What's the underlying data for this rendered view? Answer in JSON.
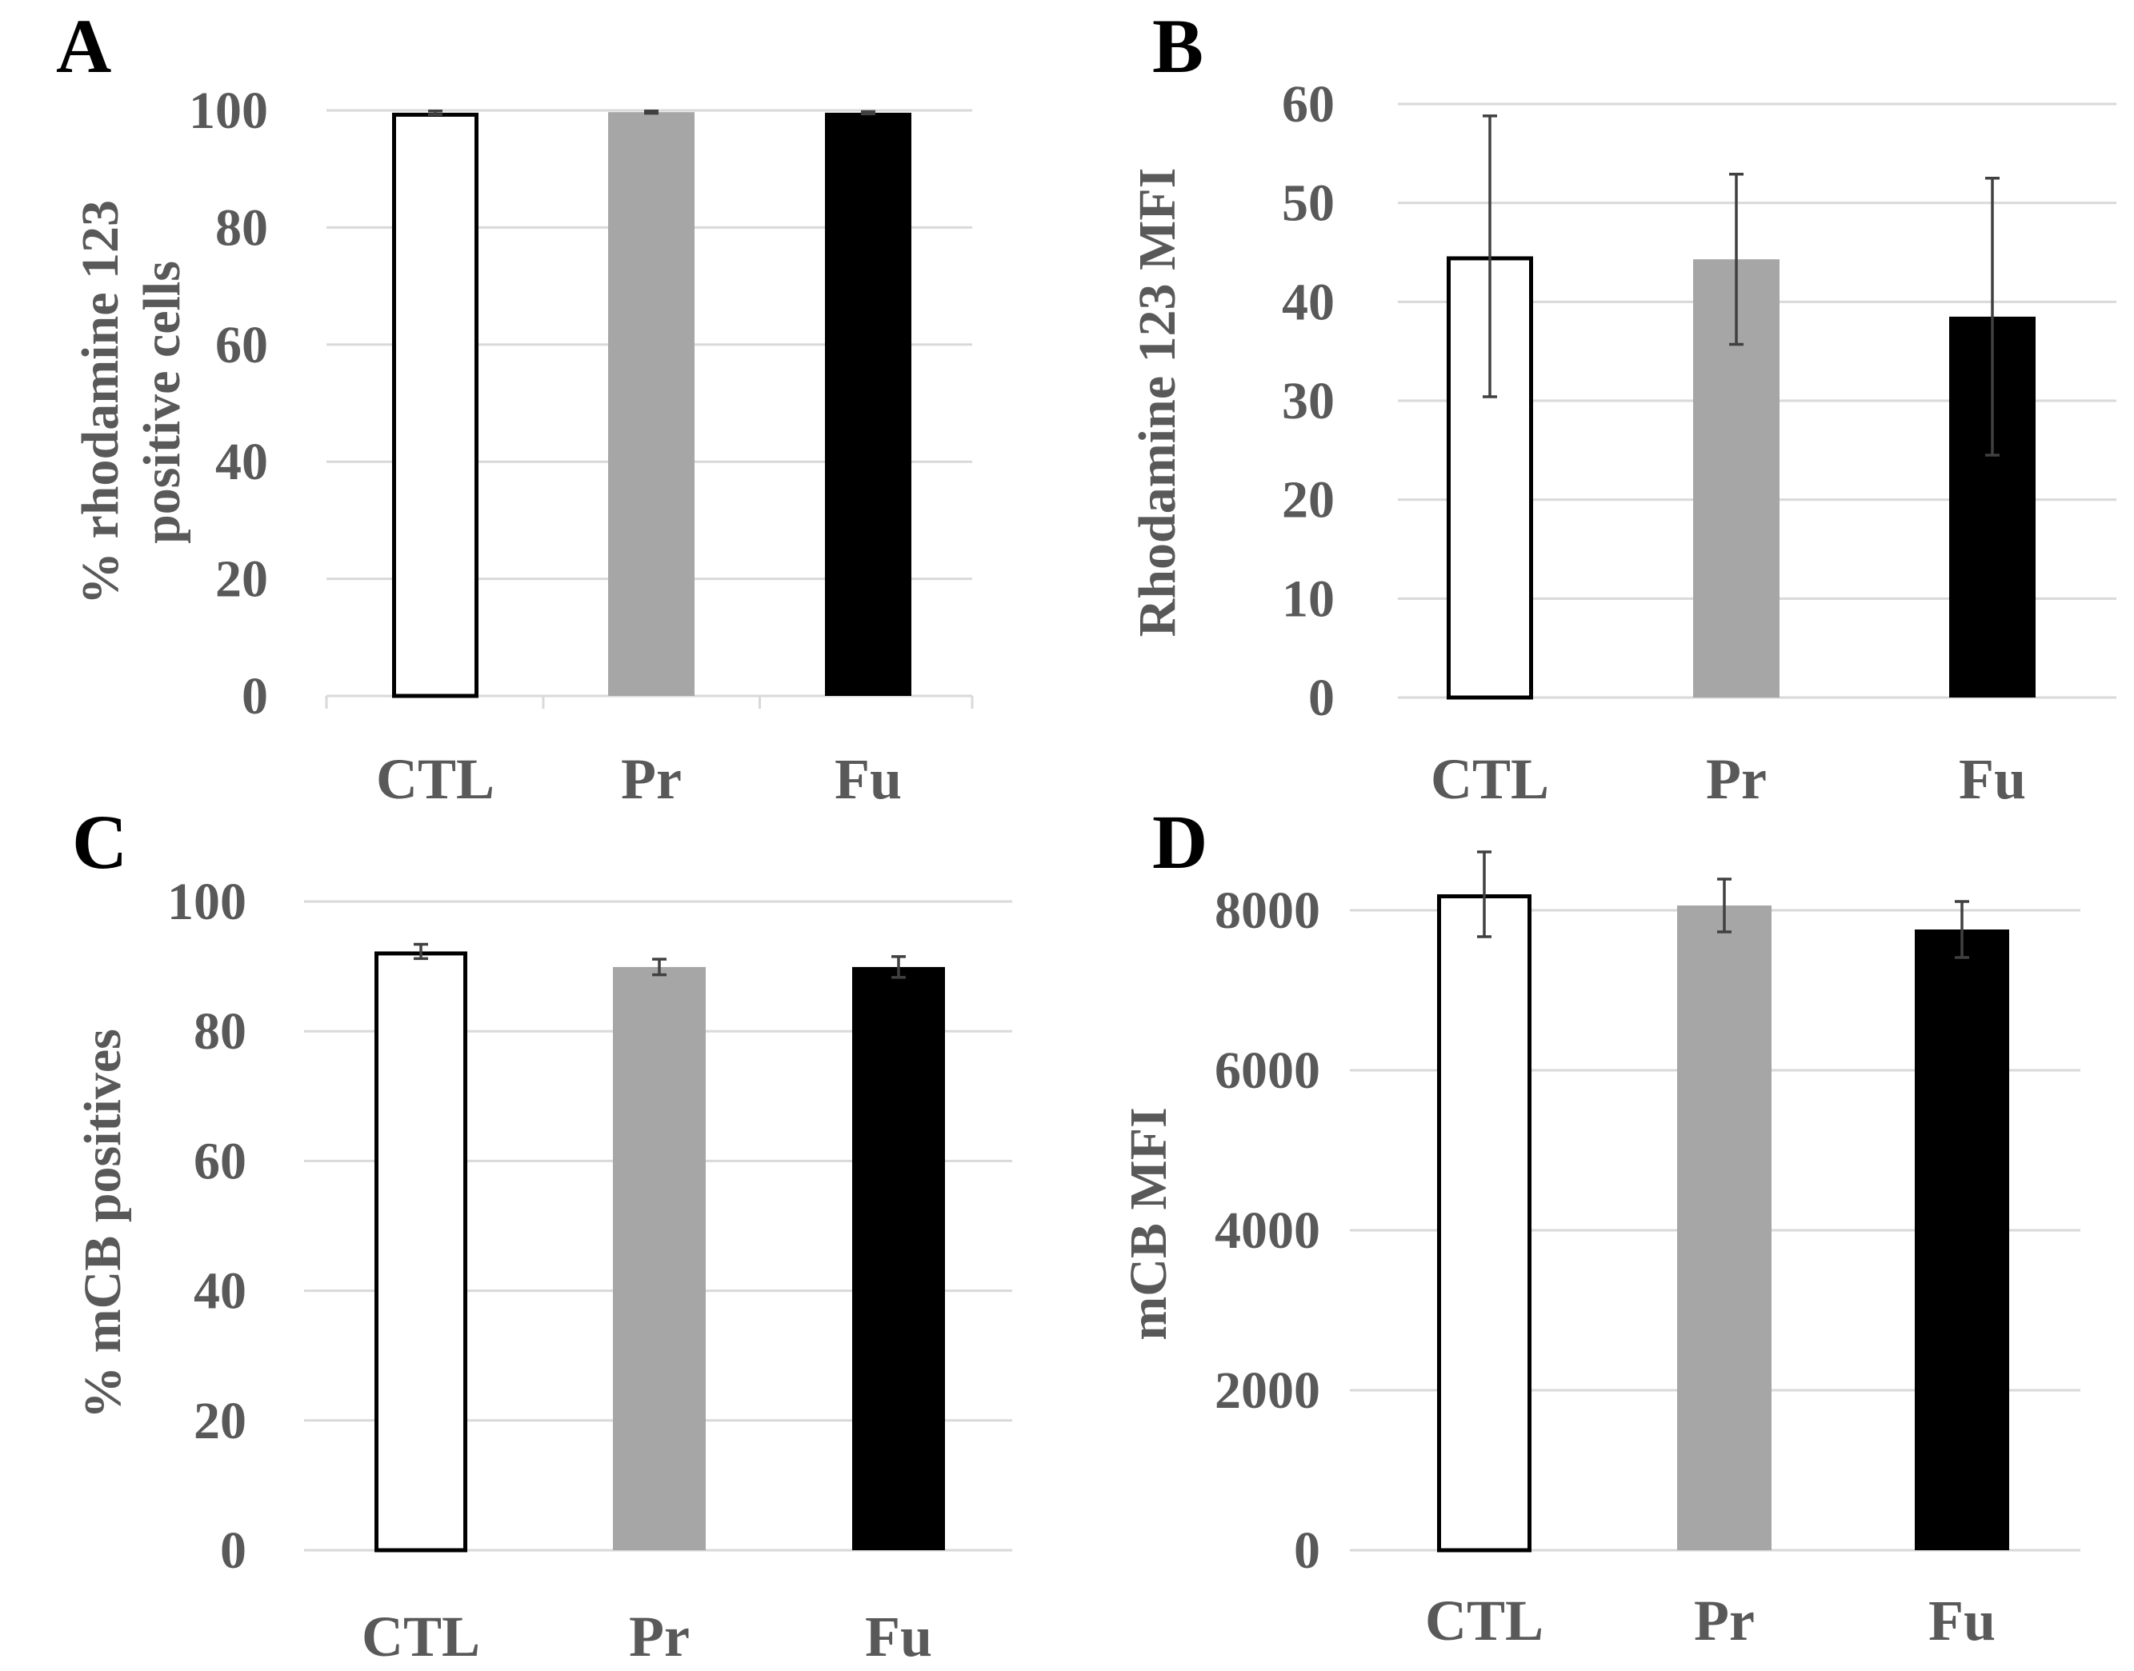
{
  "colors": {
    "ctl_fill": "#ffffff",
    "ctl_stroke": "#000000",
    "pr_fill": "#a6a6a6",
    "fu_fill": "#000000",
    "text": "#595959",
    "grid": "#d9d9d9",
    "error_bar": "#404040"
  },
  "chart_data": [
    {
      "panel": "A",
      "type": "bar",
      "categories": [
        "CTL",
        "Pr",
        "Fu"
      ],
      "values": [
        99.6,
        99.7,
        99.6
      ],
      "errors": [
        0.3,
        0.2,
        0.2
      ],
      "ylabel": [
        "% rhodamine 123",
        "positive cells"
      ],
      "ylim": [
        0,
        100
      ],
      "yticks": [
        "0",
        "20",
        "40",
        "60",
        "80",
        "100"
      ],
      "grid": true
    },
    {
      "panel": "B",
      "type": "bar",
      "categories": [
        "CTL",
        "Pr",
        "Fu"
      ],
      "values": [
        44.6,
        44.3,
        38.5
      ],
      "errors": [
        14.2,
        8.6,
        14.0
      ],
      "ylabel": [
        "Rhodamine 123 MFI"
      ],
      "ylim": [
        0,
        60
      ],
      "yticks": [
        "0",
        "10",
        "20",
        "30",
        "40",
        "50",
        "60"
      ],
      "grid": true
    },
    {
      "panel": "C",
      "type": "bar",
      "categories": [
        "CTL",
        "Pr",
        "Fu"
      ],
      "values": [
        92.3,
        89.9,
        89.9
      ],
      "errors": [
        1.1,
        1.2,
        1.6
      ],
      "ylabel": [
        "% mCB positives"
      ],
      "ylim": [
        0,
        100
      ],
      "yticks": [
        "0",
        "20",
        "40",
        "60",
        "80",
        "100"
      ],
      "grid": true
    },
    {
      "panel": "D",
      "type": "bar",
      "categories": [
        "CTL",
        "Pr",
        "Fu"
      ],
      "values": [
        8200,
        8060,
        7760
      ],
      "errors": [
        530,
        330,
        350
      ],
      "ylabel": [
        "mCB MFI"
      ],
      "ylim": [
        0,
        8000
      ],
      "yticks": [
        "0",
        "2000",
        "4000",
        "6000",
        "8000"
      ],
      "grid": true
    }
  ]
}
